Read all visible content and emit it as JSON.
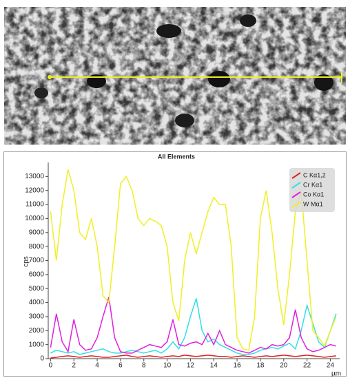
{
  "chart_data": {
    "type": "line",
    "title": "All Elements",
    "y_label": "cps",
    "x_label": "µm",
    "x": [
      0,
      0.5,
      1,
      1.5,
      2,
      2.5,
      3,
      3.5,
      4,
      4.5,
      5,
      5.5,
      6,
      6.5,
      7,
      7.5,
      8,
      8.5,
      9,
      9.5,
      10,
      10.5,
      11,
      11.5,
      12,
      12.5,
      13,
      13.5,
      14,
      14.5,
      15,
      15.5,
      16,
      16.5,
      17,
      17.5,
      18,
      18.5,
      19,
      19.5,
      20,
      20.5,
      21,
      21.5,
      22,
      22.5,
      23,
      23.5,
      24,
      24.5
    ],
    "series": [
      {
        "name": "C Kα1,2",
        "color": "#e02020",
        "values": [
          50,
          100,
          150,
          200,
          150,
          100,
          150,
          200,
          150,
          100,
          100,
          150,
          200,
          250,
          150,
          100,
          150,
          200,
          150,
          100,
          150,
          200,
          150,
          250,
          200,
          150,
          200,
          250,
          200,
          150,
          150,
          100,
          150,
          200,
          150,
          100,
          150,
          200,
          150,
          200,
          250,
          200,
          150,
          200,
          250,
          200,
          150,
          100,
          150,
          200
        ]
      },
      {
        "name": "Cr Kα1",
        "color": "#30e0e8",
        "values": [
          400,
          600,
          500,
          400,
          500,
          300,
          400,
          500,
          600,
          700,
          500,
          400,
          400,
          500,
          600,
          500,
          400,
          500,
          600,
          400,
          700,
          1200,
          700,
          1500,
          3000,
          4300,
          2000,
          1200,
          1400,
          1000,
          800,
          600,
          400,
          300,
          300,
          400,
          600,
          700,
          800,
          700,
          900,
          1100,
          700,
          2000,
          3800,
          2500,
          1200,
          800,
          2000,
          3200
        ]
      },
      {
        "name": "Co Kα1",
        "color": "#e020e0",
        "values": [
          800,
          3200,
          1200,
          500,
          2800,
          1000,
          600,
          700,
          1500,
          3000,
          4400,
          1500,
          500,
          400,
          400,
          600,
          800,
          1000,
          900,
          800,
          1200,
          2800,
          1000,
          900,
          1100,
          1200,
          1000,
          1800,
          1000,
          2000,
          1000,
          800,
          600,
          500,
          400,
          600,
          800,
          700,
          1000,
          900,
          1000,
          1500,
          3500,
          1500,
          700,
          500,
          600,
          800,
          1000,
          900
        ]
      },
      {
        "name": "W Mα1",
        "color": "#f0f020",
        "values": [
          10500,
          7000,
          11000,
          13500,
          12000,
          9000,
          8500,
          10000,
          8000,
          4500,
          4000,
          8000,
          12500,
          13000,
          12000,
          10000,
          9500,
          10000,
          9800,
          9500,
          8000,
          4000,
          2700,
          7000,
          9000,
          7500,
          9000,
          10500,
          11500,
          11000,
          11000,
          8000,
          1500,
          700,
          600,
          3000,
          10000,
          12000,
          9000,
          5000,
          2400,
          6000,
          10500,
          12000,
          7000,
          2000,
          1500,
          900,
          2000,
          3000
        ]
      }
    ],
    "xlim": [
      -0.2,
      24.8
    ],
    "ylim": [
      0,
      14000
    ],
    "xticks": [
      0,
      2,
      4,
      6,
      8,
      10,
      12,
      14,
      16,
      18,
      20,
      22,
      24
    ],
    "yticks": [
      0,
      1000,
      2000,
      3000,
      4000,
      5000,
      6000,
      7000,
      8000,
      9000,
      10000,
      11000,
      12000,
      13000
    ],
    "legend": "top-right"
  }
}
